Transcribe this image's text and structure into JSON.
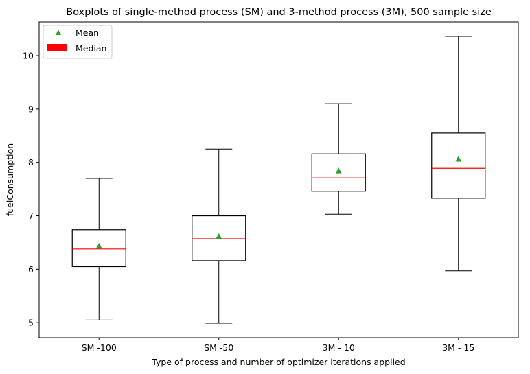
{
  "chart_data": {
    "type": "box",
    "title": "Boxplots of single-method process (SM) and 3-method process (3M), 500 sample size",
    "xlabel": "Type of process and number of optimizer iterations applied",
    "ylabel": "fuelConsumption",
    "categories": [
      "SM -100",
      "SM -50",
      "3M - 10",
      "3M - 15"
    ],
    "boxes": [
      {
        "whisker_low": 5.05,
        "q1": 6.05,
        "median": 6.38,
        "q3": 6.74,
        "whisker_high": 7.7,
        "mean": 6.43
      },
      {
        "whisker_low": 4.99,
        "q1": 6.16,
        "median": 6.57,
        "q3": 7.0,
        "whisker_high": 8.25,
        "mean": 6.61
      },
      {
        "whisker_low": 7.03,
        "q1": 7.46,
        "median": 7.71,
        "q3": 8.16,
        "whisker_high": 9.1,
        "mean": 7.84
      },
      {
        "whisker_low": 5.97,
        "q1": 7.33,
        "median": 7.89,
        "q3": 8.55,
        "whisker_high": 10.36,
        "mean": 8.06
      }
    ],
    "yticks": [
      "5",
      "6",
      "7",
      "8",
      "9",
      "10"
    ],
    "ylim": [
      4.72,
      10.63
    ],
    "legend": {
      "position": "top-left",
      "entries": [
        {
          "label": "Mean",
          "marker": "triangle",
          "color": "#2ca02c"
        },
        {
          "label": "Median",
          "marker": "patch",
          "color": "#ff0000"
        }
      ]
    },
    "colors": {
      "mean": "#2ca02c",
      "median": "#ff0000",
      "box": "#000000"
    },
    "grid": false
  }
}
